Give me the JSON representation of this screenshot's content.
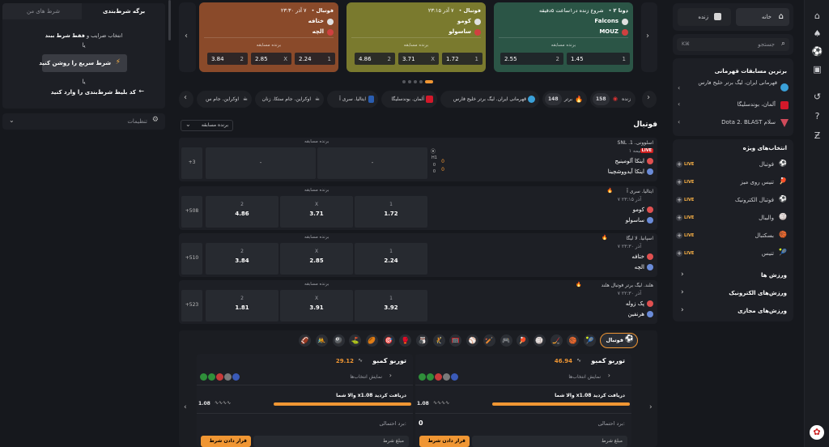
{
  "rail": {
    "items": [
      "home-icon",
      "spade-icon",
      "soccer-icon",
      "ticket-icon",
      "history-icon",
      "help-icon",
      "refresh-icon",
      "gift-icon"
    ]
  },
  "right": {
    "home_tab": "خانه",
    "live_tab": "زنده",
    "search_placeholder": "جستجو",
    "search_shortcut": "K⌘",
    "top_title": "برترین مسابقات قهرمانی",
    "top": [
      {
        "label": "قهرمانی ایران، لیگ برتر خلیج فارس"
      },
      {
        "label": "آلمان، بوندسلیگا"
      },
      {
        "label": "Dota 2. BLAST سلام"
      }
    ],
    "featured_title": "انتخاب‌های ویژه",
    "featured": [
      {
        "label": "فوتبال",
        "live": "LIVE"
      },
      {
        "label": "تنیس روی میز",
        "live": "LIVE"
      },
      {
        "label": "فوتبال الکترونیک",
        "live": "LIVE"
      },
      {
        "label": "والیبال",
        "live": "LIVE"
      },
      {
        "label": "بسکتبال",
        "live": "LIVE"
      },
      {
        "label": "تنیس",
        "live": "LIVE"
      }
    ],
    "groups": [
      "ورزش ها",
      "ورزش‌های الکترونیک",
      "ورزش‌های مجازی"
    ]
  },
  "left": {
    "tab_slip": "برگه شرط‌بندی",
    "tab_mine": "شرط های من",
    "hint1": "انتخاب ضرایب و",
    "hint1b": "فقط شرط ببند",
    "or1": "یا",
    "quick_btn": "شرط سریع را روشن کنید",
    "or2": "یا",
    "code_hint": "کد بلیط شرط‌بندی را وارد کنید",
    "settings": "تنظیمات"
  },
  "featured": [
    {
      "sport": "دوتا ۲",
      "status": "شروع زنده در۱ساعت ۵دقیقه",
      "team1": "Falcons",
      "team2": "MOUZ",
      "winner": "برنده مسابقه",
      "o1k": "1",
      "o1": "1.45",
      "o2k": "2",
      "o2": "2.55",
      "xk": "",
      "x": "",
      "color": "#2b5546"
    },
    {
      "sport": "فوتبال",
      "status": "۷ آذر ۲۳:۱۵",
      "team1": "کومو",
      "team2": "ساسولو",
      "winner": "برنده مسابقه",
      "o1k": "1",
      "o1": "1.72",
      "xk": "X",
      "x": "3.71",
      "o2k": "2",
      "o2": "4.86",
      "color": "#7a7a2e"
    },
    {
      "sport": "فوتبال",
      "status": "۷ آذر ۲۳:۳۰",
      "team1": "ختافه",
      "team2": "الچه",
      "winner": "برنده مسابقه",
      "o1k": "1",
      "o1": "2.24",
      "xk": "X",
      "x": "2.85",
      "o2k": "2",
      "o2": "3.84",
      "color": "#8a4a2a"
    }
  ],
  "chips": {
    "live": "زنده",
    "live_count": "158",
    "top": "برتر",
    "top_count": "148",
    "c1": "قهرمانی ایران. لیگ برتر خلیج فارس",
    "c2": "آلمان. بوندسلیگا",
    "c3": "ایتالیا. سری آ",
    "c4": "اوکراین. جام ستکا. زنان",
    "c5": "اوکراین. جام س"
  },
  "section": {
    "title": "فوتبال",
    "dropdown": "برنده مسابقه"
  },
  "rows": [
    {
      "league": "SNL .اسلوونی. 1",
      "time": "نیمه ۱",
      "live": "LIVE",
      "team1": "اینکا آلومینیج",
      "team2": "اینکا آیدووشچینا",
      "s1": "0",
      "s2": "0",
      "h1": "0",
      "h2": "0",
      "hl": "H1",
      "more": "+3",
      "market": "برنده مسابقه",
      "c1k": "",
      "c1": "-",
      "c2k": "",
      "c2": "-",
      "c3k": "",
      "c3": ""
    },
    {
      "league": "ایتالیا. سری آ",
      "time": "۷ آذر ۲۳:۱۵",
      "team1": "کومو",
      "team2": "ساسولو",
      "more": "+508",
      "market": "برنده مسابقه",
      "c1k": "1",
      "c1": "1.72",
      "c2k": "X",
      "c2": "3.71",
      "c3k": "2",
      "c3": "4.86"
    },
    {
      "league": "اسپانیا. لا لیگا",
      "time": "۷ آذر ۲۳:۳۰",
      "team1": "ختافه",
      "team2": "الچه",
      "more": "+510",
      "market": "برنده مسابقه",
      "c1k": "1",
      "c1": "2.24",
      "c2k": "X",
      "c2": "2.85",
      "c3k": "2",
      "c3": "3.84"
    },
    {
      "league": "هلند. لیگ برتر فوتبال هلند",
      "time": "۷ آذر ۲۲:۳۰",
      "team1": "پک زوله",
      "team2": "هرنفین",
      "more": "+523",
      "market": "برنده مسابقه",
      "c1k": "1",
      "c1": "3.92",
      "c2k": "X",
      "c2": "3.91",
      "c3k": "2",
      "c3": "1.81"
    }
  ],
  "sports_bar": {
    "active": "فوتبال"
  },
  "combos": [
    {
      "title": "توربو کمبو",
      "odds": "46.94",
      "show": "نمایش انتخاب‌ها",
      "promo": "x1.08 دریافت کردید",
      "promo_prefix": "والا شما",
      "mult": "1.08",
      "win_label": "برد احتمالی:",
      "win": "0",
      "bet_btn": "قرار دادن شرط",
      "stake_label": "مبلغ شرط"
    },
    {
      "title": "توربو کمبو",
      "odds": "29.12",
      "show": "نمایش انتخاب‌ها",
      "promo": "x1.08 دریافت کردید",
      "promo_prefix": "والا شما",
      "mult": "1.08",
      "win_label": "برد احتمالی:",
      "win": "",
      "bet_btn": "قرار دادن شرط",
      "stake_label": "مبلغ شرط"
    }
  ]
}
